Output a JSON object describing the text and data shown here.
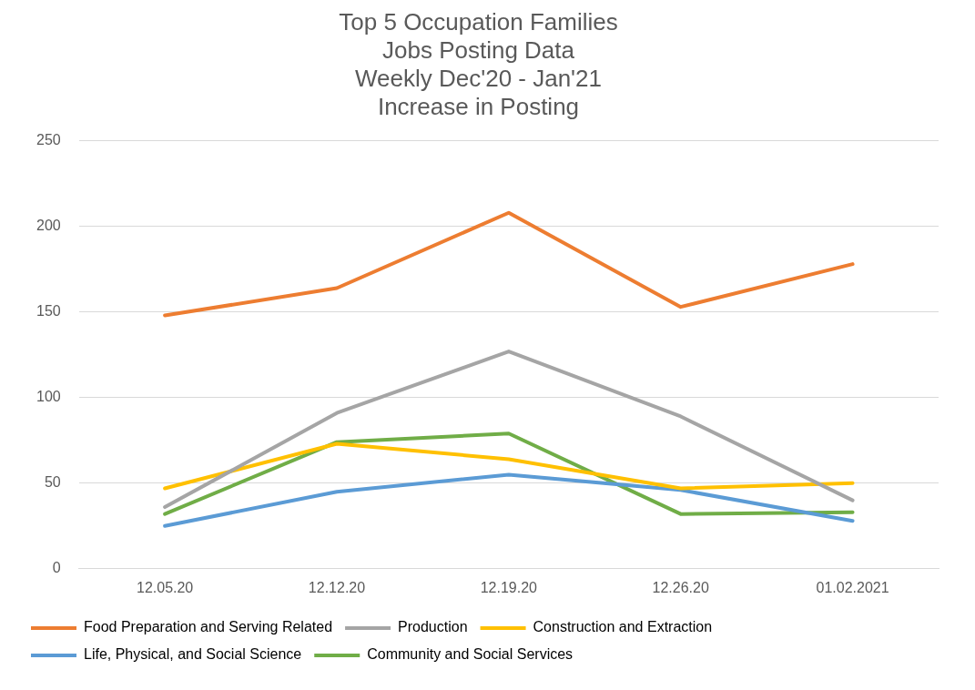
{
  "chart_data": {
    "type": "line",
    "title": "Top 5 Occupation Families\nJobs Posting Data\nWeekly Dec'20 - Jan'21\nIncrease in Posting",
    "categories": [
      "12.05.20",
      "12.12.20",
      "12.19.20",
      "12.26.20",
      "01.02.2021"
    ],
    "series": [
      {
        "name": "Food Preparation and Serving Related",
        "color": "#ed7d31",
        "values": [
          148,
          164,
          208,
          153,
          178
        ]
      },
      {
        "name": "Production",
        "color": "#a5a5a5",
        "values": [
          36,
          91,
          127,
          89,
          40
        ]
      },
      {
        "name": "Construction and Extraction",
        "color": "#ffc000",
        "values": [
          47,
          73,
          64,
          47,
          50
        ]
      },
      {
        "name": "Life, Physical, and Social Science",
        "color": "#5b9bd5",
        "values": [
          25,
          45,
          55,
          46,
          28
        ]
      },
      {
        "name": "Community and Social Services",
        "color": "#70ad47",
        "values": [
          32,
          74,
          79,
          32,
          33
        ]
      }
    ],
    "ylim": [
      0,
      250
    ],
    "yticks": [
      0,
      50,
      100,
      150,
      200,
      250
    ],
    "grid": "y",
    "legend": "bottom",
    "marker": "none",
    "line_style": "solid"
  }
}
